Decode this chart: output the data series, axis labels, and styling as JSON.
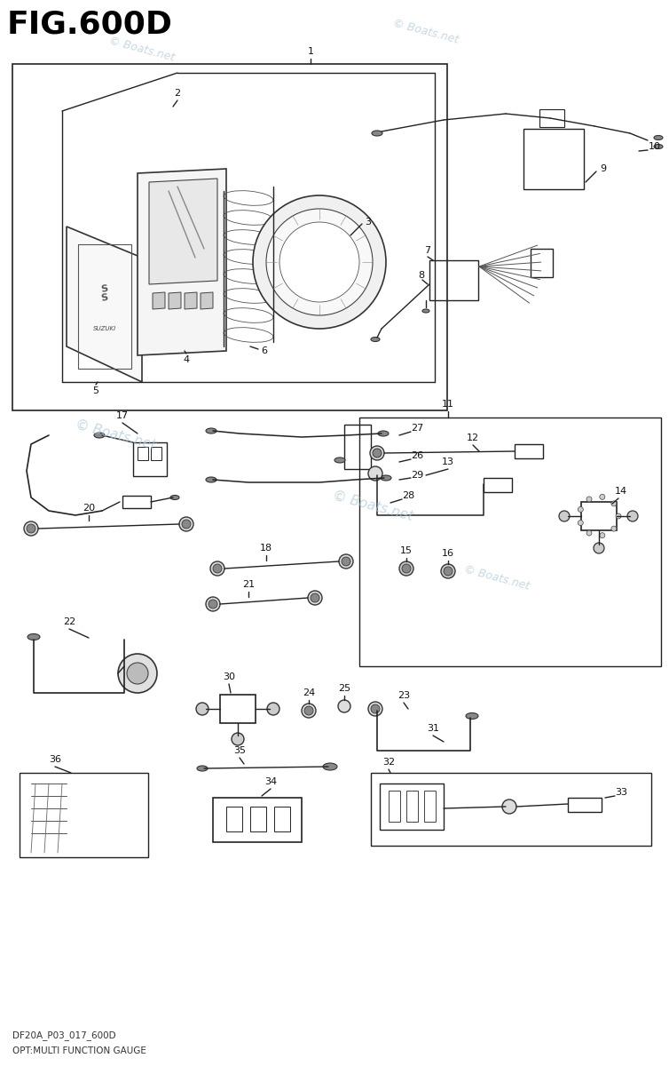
{
  "title": "FIG.600D",
  "subtitle1": "DF20A_P03_017_600D",
  "subtitle2": "OPT:MULTI FUNCTION GAUGE",
  "watermark": "© Boats.net",
  "bg_color": "#ffffff",
  "title_color": "#000000",
  "title_fontsize": 26,
  "fig_width": 7.54,
  "fig_height": 12.0,
  "dpi": 100
}
